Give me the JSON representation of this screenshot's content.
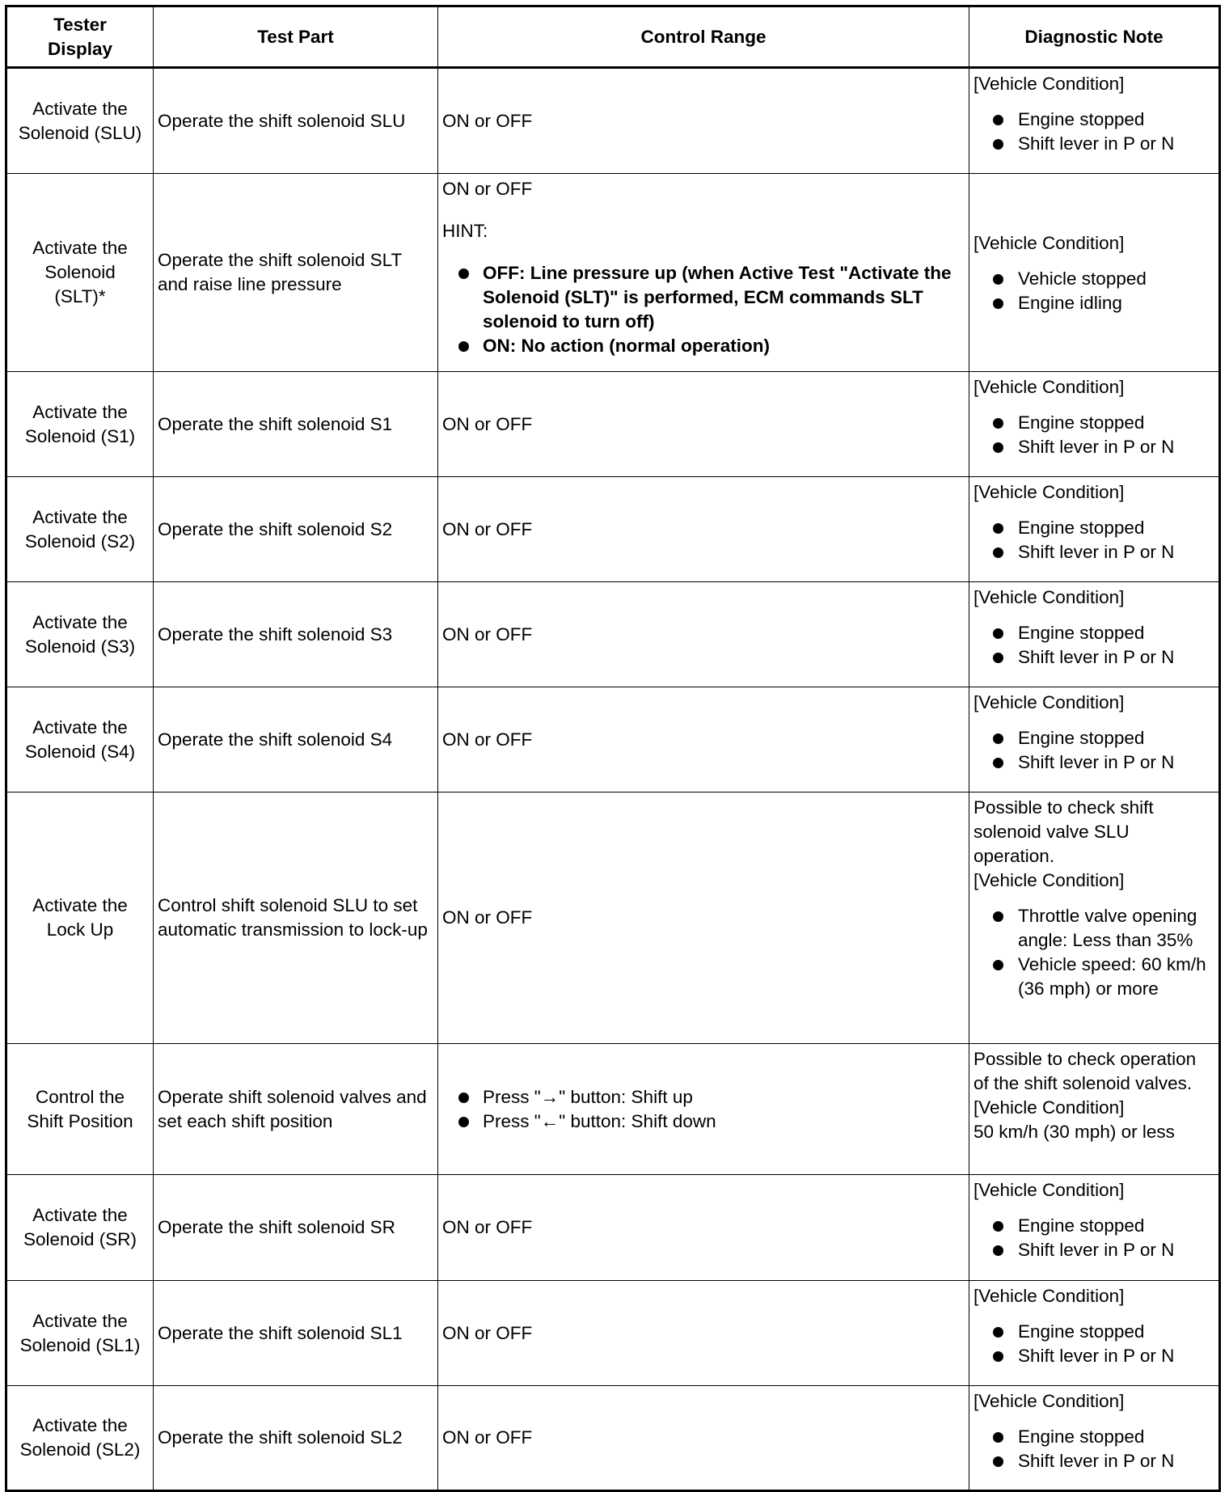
{
  "headers": [
    "Tester Display",
    "Test Part",
    "Control Range",
    "Diagnostic Note"
  ],
  "rows": [
    {
      "tester": [
        "Activate the",
        "Solenoid (SLU)"
      ],
      "part": "Operate the shift solenoid SLU",
      "control": {
        "text": "ON or OFF"
      },
      "note": {
        "pre": [],
        "heading": "[Vehicle Condition]",
        "bullets": [
          "Engine stopped",
          "Shift lever in P or N"
        ]
      }
    },
    {
      "tester": [
        "Activate the",
        "Solenoid",
        "(SLT)*"
      ],
      "part": "Operate the shift solenoid SLT and raise line pressure",
      "control": {
        "text": "ON or OFF",
        "hint": "HINT:",
        "bullets": [
          "OFF: Line pressure up (when Active Test \"Activate the Solenoid (SLT)\" is performed, ECM commands SLT solenoid to turn off)",
          "ON: No action (normal operation)"
        ]
      },
      "note": {
        "pre": [],
        "heading": "[Vehicle Condition]",
        "bullets": [
          "Vehicle stopped",
          "Engine idling"
        ]
      }
    },
    {
      "tester": [
        "Activate the",
        "Solenoid (S1)"
      ],
      "part": "Operate the shift solenoid S1",
      "control": {
        "text": "ON or OFF"
      },
      "note": {
        "pre": [],
        "heading": "[Vehicle Condition]",
        "bullets": [
          "Engine stopped",
          "Shift lever in P or N"
        ]
      }
    },
    {
      "tester": [
        "Activate the",
        "Solenoid (S2)"
      ],
      "part": "Operate the shift solenoid S2",
      "control": {
        "text": "ON or OFF"
      },
      "note": {
        "pre": [],
        "heading": "[Vehicle Condition]",
        "bullets": [
          "Engine stopped",
          "Shift lever in P or N"
        ]
      }
    },
    {
      "tester": [
        "Activate the",
        "Solenoid (S3)"
      ],
      "part": "Operate the shift solenoid S3",
      "control": {
        "text": "ON or OFF"
      },
      "note": {
        "pre": [],
        "heading": "[Vehicle Condition]",
        "bullets": [
          "Engine stopped",
          "Shift lever in P or N"
        ]
      }
    },
    {
      "tester": [
        "Activate the",
        "Solenoid (S4)"
      ],
      "part": "Operate the shift solenoid S4",
      "control": {
        "text": "ON or OFF"
      },
      "note": {
        "pre": [],
        "heading": "[Vehicle Condition]",
        "bullets": [
          "Engine stopped",
          "Shift lever in P or N"
        ]
      }
    },
    {
      "tester": [
        "Activate the",
        "Lock Up"
      ],
      "part": "Control shift solenoid SLU to set automatic transmission to lock-up",
      "control": {
        "text": "ON or OFF"
      },
      "note": {
        "pre": [
          "Possible to check shift solenoid valve SLU operation."
        ],
        "heading": "[Vehicle Condition]",
        "bullets": [
          "Throttle valve opening angle: Less than 35%",
          "Vehicle speed: 60 km/h (36 mph) or more"
        ]
      }
    },
    {
      "tester": [
        "Control the",
        "Shift Position"
      ],
      "part": "Operate shift solenoid valves and set each shift position",
      "control": {
        "bullets_plain": [
          "Press \"→\" button: Shift up",
          "Press \"←\" button: Shift down"
        ]
      },
      "note": {
        "pre": [
          "Possible to check operation of the shift solenoid valves."
        ],
        "heading": "[Vehicle Condition]",
        "post": "50 km/h (30 mph) or less",
        "bullets": []
      }
    },
    {
      "tester": [
        "Activate the",
        "Solenoid (SR)"
      ],
      "part": "Operate the shift solenoid SR",
      "control": {
        "text": "ON or OFF"
      },
      "note": {
        "pre": [],
        "heading": "[Vehicle Condition]",
        "bullets": [
          "Engine stopped",
          "Shift lever in P or N"
        ]
      }
    },
    {
      "tester": [
        "Activate the",
        "Solenoid (SL1)"
      ],
      "part": "Operate the shift solenoid SL1",
      "control": {
        "text": "ON or OFF"
      },
      "note": {
        "pre": [],
        "heading": "[Vehicle Condition]",
        "bullets": [
          "Engine stopped",
          "Shift lever in P or N"
        ]
      }
    },
    {
      "tester": [
        "Activate the",
        "Solenoid (SL2)"
      ],
      "part": "Operate the shift solenoid SL2",
      "control": {
        "text": "ON or OFF"
      },
      "note": {
        "pre": [],
        "heading": "[Vehicle Condition]",
        "bullets": [
          "Engine stopped",
          "Shift lever in P or N"
        ]
      }
    }
  ]
}
